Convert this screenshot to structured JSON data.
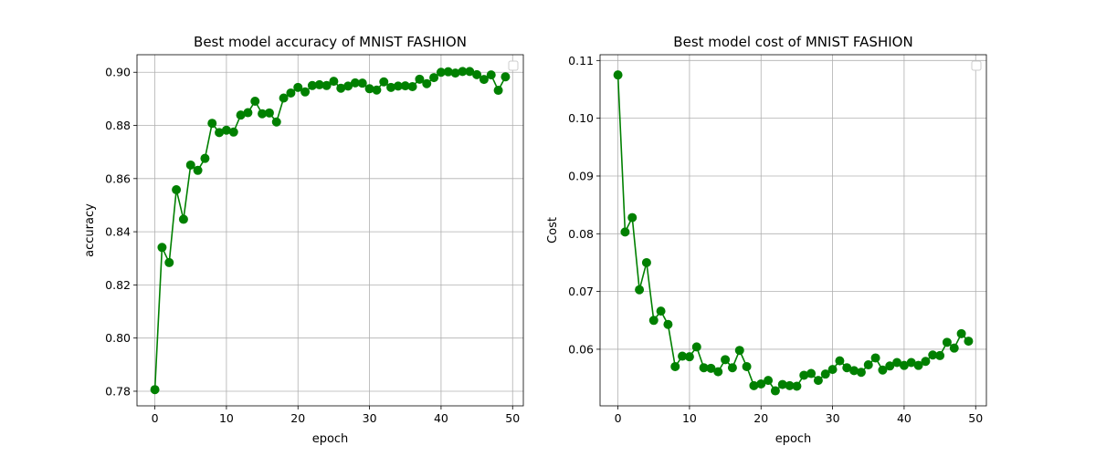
{
  "chart_data": [
    {
      "type": "line",
      "title": "Best model accuracy of MNIST FASHION",
      "xlabel": "epoch",
      "ylabel": "accuracy",
      "xlim": [
        -2.5,
        51.5
      ],
      "ylim": [
        0.7745,
        0.9066
      ],
      "xticks": [
        0,
        10,
        20,
        30,
        40,
        50
      ],
      "xtick_labels": [
        "0",
        "10",
        "20",
        "30",
        "40",
        "50"
      ],
      "yticks": [
        0.78,
        0.8,
        0.82,
        0.84,
        0.86,
        0.88,
        0.9
      ],
      "ytick_labels": [
        "0.78",
        "0.80",
        "0.82",
        "0.84",
        "0.86",
        "0.88",
        "0.90"
      ],
      "grid": true,
      "legend": "upper right (empty)",
      "color": "#008000",
      "marker": "circle",
      "x": [
        0,
        1,
        2,
        3,
        4,
        5,
        6,
        7,
        8,
        9,
        10,
        11,
        12,
        13,
        14,
        15,
        16,
        17,
        18,
        19,
        20,
        21,
        22,
        23,
        24,
        25,
        26,
        27,
        28,
        29,
        30,
        31,
        32,
        33,
        34,
        35,
        36,
        37,
        38,
        39,
        40,
        41,
        42,
        43,
        44,
        45,
        46,
        47,
        48,
        49
      ],
      "series": [
        {
          "values": [
            0.7806,
            0.8341,
            0.8284,
            0.8558,
            0.8447,
            0.8651,
            0.8631,
            0.8676,
            0.8808,
            0.8773,
            0.8782,
            0.8775,
            0.8839,
            0.8848,
            0.8891,
            0.8844,
            0.8847,
            0.8813,
            0.8903,
            0.8922,
            0.8943,
            0.8926,
            0.895,
            0.8953,
            0.895,
            0.8966,
            0.894,
            0.8948,
            0.896,
            0.8959,
            0.8938,
            0.8933,
            0.8964,
            0.8943,
            0.8948,
            0.8949,
            0.8946,
            0.8974,
            0.8957,
            0.898,
            0.9,
            0.9002,
            0.8997,
            0.9003,
            0.9003,
            0.8991,
            0.8973,
            0.899,
            0.8932,
            0.8983
          ]
        }
      ]
    },
    {
      "type": "line",
      "title": "Best model cost of MNIST FASHION",
      "xlabel": "epoch",
      "ylabel": "Cost",
      "xlim": [
        -2.5,
        51.5
      ],
      "ylim": [
        0.0502,
        0.111
      ],
      "xticks": [
        0,
        10,
        20,
        30,
        40,
        50
      ],
      "xtick_labels": [
        "0",
        "10",
        "20",
        "30",
        "40",
        "50"
      ],
      "yticks": [
        0.06,
        0.07,
        0.08,
        0.09,
        0.1,
        0.11
      ],
      "ytick_labels": [
        "0.06",
        "0.07",
        "0.08",
        "0.09",
        "0.10",
        "0.11"
      ],
      "grid": true,
      "legend": "upper right (empty)",
      "color": "#008000",
      "marker": "circle",
      "x": [
        0,
        1,
        2,
        3,
        4,
        5,
        6,
        7,
        8,
        9,
        10,
        11,
        12,
        13,
        14,
        15,
        16,
        17,
        18,
        19,
        20,
        21,
        22,
        23,
        24,
        25,
        26,
        27,
        28,
        29,
        30,
        31,
        32,
        33,
        34,
        35,
        36,
        37,
        38,
        39,
        40,
        41,
        42,
        43,
        44,
        45,
        46,
        47,
        48,
        49
      ],
      "series": [
        {
          "values": [
            0.1075,
            0.0803,
            0.0828,
            0.0703,
            0.075,
            0.065,
            0.0666,
            0.0643,
            0.057,
            0.0588,
            0.0587,
            0.0604,
            0.0568,
            0.0567,
            0.0561,
            0.0582,
            0.0568,
            0.0598,
            0.057,
            0.0537,
            0.054,
            0.0546,
            0.0528,
            0.0539,
            0.0537,
            0.0536,
            0.0555,
            0.0558,
            0.0546,
            0.0557,
            0.0565,
            0.058,
            0.0568,
            0.0563,
            0.056,
            0.0573,
            0.0585,
            0.0564,
            0.0571,
            0.0577,
            0.0572,
            0.0577,
            0.0572,
            0.0579,
            0.059,
            0.0589,
            0.0612,
            0.0602,
            0.0627,
            0.0614
          ]
        }
      ]
    }
  ]
}
